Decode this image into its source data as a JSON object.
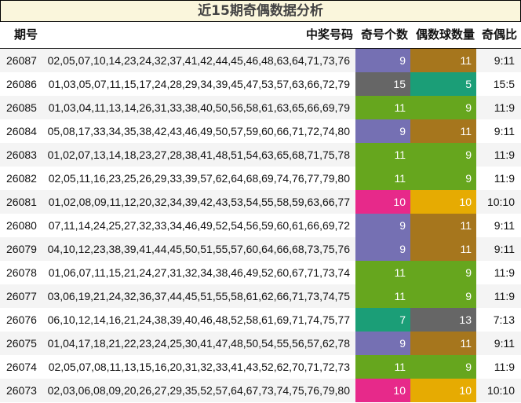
{
  "title": "近15期奇偶数据分析",
  "headers": {
    "issue": "期号",
    "numbers": "中奖号码",
    "odd": "奇号个数",
    "even": "偶数球数量",
    "ratio": "奇偶比"
  },
  "colors": {
    "9": "#7570b3",
    "11": "#a6761d",
    "15": "#666666",
    "5": "#1b9e77",
    "7": "#1b9e77",
    "13": "#666666",
    "10": "#e7298a",
    "10e": "#e6ab02"
  },
  "rows": [
    {
      "issue": "26087",
      "numbers": "02,05,07,10,14,23,24,32,37,41,42,44,45,46,48,63,64,71,73,76",
      "odd": "9",
      "even": "11",
      "ratio": "9:11",
      "odd_color": "#7570b3",
      "even_color": "#a6761d"
    },
    {
      "issue": "26086",
      "numbers": "01,03,05,07,11,15,17,24,28,29,34,39,45,47,53,57,63,66,72,79",
      "odd": "15",
      "even": "5",
      "ratio": "15:5",
      "odd_color": "#666666",
      "even_color": "#1b9e77"
    },
    {
      "issue": "26085",
      "numbers": "01,03,04,11,13,14,26,31,33,38,40,50,56,58,61,63,65,66,69,79",
      "odd": "11",
      "even": "9",
      "ratio": "11:9",
      "odd_color": "#66a61e",
      "even_color": "#66a61e"
    },
    {
      "issue": "26084",
      "numbers": "05,08,17,33,34,35,38,42,43,46,49,50,57,59,60,66,71,72,74,80",
      "odd": "9",
      "even": "11",
      "ratio": "9:11",
      "odd_color": "#7570b3",
      "even_color": "#a6761d"
    },
    {
      "issue": "26083",
      "numbers": "01,02,07,13,14,18,23,27,28,38,41,48,51,54,63,65,68,71,75,78",
      "odd": "11",
      "even": "9",
      "ratio": "11:9",
      "odd_color": "#66a61e",
      "even_color": "#66a61e"
    },
    {
      "issue": "26082",
      "numbers": "02,05,11,16,23,25,26,29,33,39,57,62,64,68,69,74,76,77,79,80",
      "odd": "11",
      "even": "9",
      "ratio": "11:9",
      "odd_color": "#66a61e",
      "even_color": "#66a61e"
    },
    {
      "issue": "26081",
      "numbers": "01,02,08,09,11,12,20,32,34,39,42,43,53,54,55,58,59,63,66,77",
      "odd": "10",
      "even": "10",
      "ratio": "10:10",
      "odd_color": "#e7298a",
      "even_color": "#e6ab02"
    },
    {
      "issue": "26080",
      "numbers": "07,11,14,24,25,27,32,33,34,46,49,52,54,56,59,60,61,66,69,72",
      "odd": "9",
      "even": "11",
      "ratio": "9:11",
      "odd_color": "#7570b3",
      "even_color": "#a6761d"
    },
    {
      "issue": "26079",
      "numbers": "04,10,12,23,38,39,41,44,45,50,51,55,57,60,64,66,68,73,75,76",
      "odd": "9",
      "even": "11",
      "ratio": "9:11",
      "odd_color": "#7570b3",
      "even_color": "#a6761d"
    },
    {
      "issue": "26078",
      "numbers": "01,06,07,11,15,21,24,27,31,32,34,38,46,49,52,60,67,71,73,74",
      "odd": "11",
      "even": "9",
      "ratio": "11:9",
      "odd_color": "#66a61e",
      "even_color": "#66a61e"
    },
    {
      "issue": "26077",
      "numbers": "03,06,19,21,24,32,36,37,44,45,51,55,58,61,62,66,71,73,74,75",
      "odd": "11",
      "even": "9",
      "ratio": "11:9",
      "odd_color": "#66a61e",
      "even_color": "#66a61e"
    },
    {
      "issue": "26076",
      "numbers": "06,10,12,14,16,21,24,38,39,40,46,48,52,58,61,69,71,74,75,77",
      "odd": "7",
      "even": "13",
      "ratio": "7:13",
      "odd_color": "#1b9e77",
      "even_color": "#666666"
    },
    {
      "issue": "26075",
      "numbers": "01,04,17,18,21,22,23,24,25,30,41,47,48,50,54,55,56,57,62,78",
      "odd": "9",
      "even": "11",
      "ratio": "9:11",
      "odd_color": "#7570b3",
      "even_color": "#a6761d"
    },
    {
      "issue": "26074",
      "numbers": "02,05,07,08,11,13,15,16,20,31,32,33,41,43,52,62,70,71,72,73",
      "odd": "11",
      "even": "9",
      "ratio": "11:9",
      "odd_color": "#66a61e",
      "even_color": "#66a61e"
    },
    {
      "issue": "26073",
      "numbers": "02,03,06,08,09,20,26,27,29,35,52,57,64,67,73,74,75,76,79,80",
      "odd": "10",
      "even": "10",
      "ratio": "10:10",
      "odd_color": "#e7298a",
      "even_color": "#e6ab02"
    }
  ]
}
